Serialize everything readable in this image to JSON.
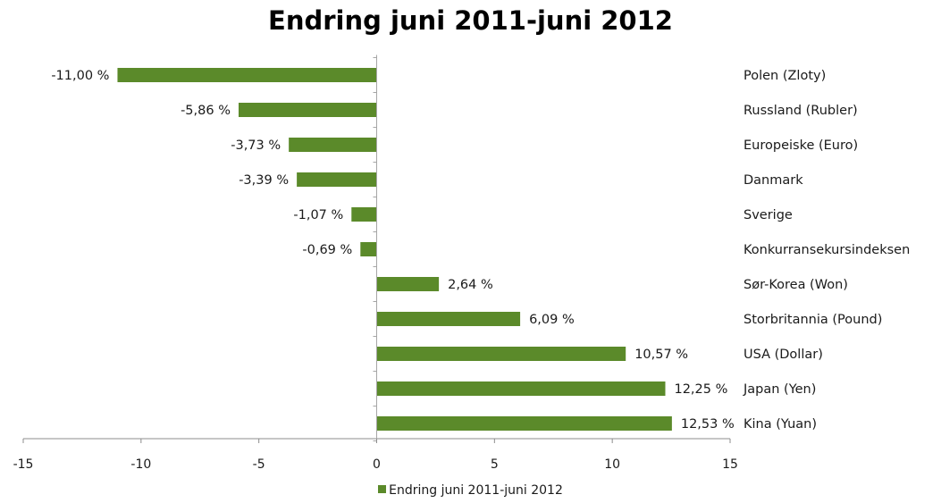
{
  "chart_data": {
    "type": "bar",
    "orientation": "horizontal",
    "title": "Endring juni 2011-juni 2012",
    "categories": [
      "Polen (Zloty)",
      "Russland (Rubler)",
      "Europeiske (Euro)",
      "Danmark",
      "Sverige",
      "Konkurransekursindeksen",
      "Sør-Korea (Won)",
      "Storbritannia (Pound)",
      "USA (Dollar)",
      "Japan (Yen)",
      "Kina (Yuan)"
    ],
    "series": [
      {
        "name": "Endring juni 2011-juni 2012",
        "values": [
          -11.0,
          -5.86,
          -3.73,
          -3.39,
          -1.07,
          -0.69,
          2.64,
          6.09,
          10.57,
          12.25,
          12.53
        ],
        "labels": [
          "-11,00 %",
          "-5,86 %",
          "-3,73 %",
          "-3,39 %",
          "-1,07 %",
          "-0,69 %",
          "2,64 %",
          "6,09 %",
          "10,57 %",
          "12,25 %",
          "12,53 %"
        ]
      }
    ],
    "xlim": [
      -15,
      15
    ],
    "xticks": [
      -15,
      -10,
      -5,
      0,
      5,
      10,
      15
    ],
    "xtick_labels": [
      "-15",
      "-10",
      "-5",
      "0",
      "5",
      "10",
      "15"
    ],
    "grid": false,
    "legend_position": "bottom",
    "bar_color": "#5b8a2a"
  }
}
